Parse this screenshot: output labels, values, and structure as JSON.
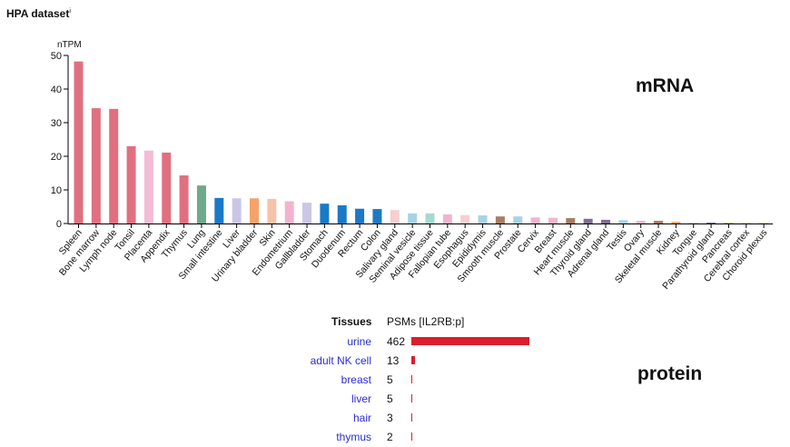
{
  "dataset_title": "HPA dataset",
  "dataset_info_mark": "i",
  "mrna_label": "mRNA",
  "protein_label": "protein",
  "chart_data": [
    {
      "type": "bar",
      "ylabel": "nTPM",
      "ylim": [
        0,
        50
      ],
      "yticks": [
        0,
        10,
        20,
        30,
        40,
        50
      ],
      "categories": [
        "Spleen",
        "Bone marrow",
        "Lymph node",
        "Tonsil",
        "Placenta",
        "Appendix",
        "Thymus",
        "Lung",
        "Small intestine",
        "Liver",
        "Urinary bladder",
        "Skin",
        "Endometrium",
        "Gallbladder",
        "Stomach",
        "Duodenum",
        "Rectum",
        "Colon",
        "Salivary gland",
        "Seminal vesicle",
        "Adipose tissue",
        "Fallopian tube",
        "Esophagus",
        "Epididymis",
        "Smooth muscle",
        "Prostate",
        "Cervix",
        "Breast",
        "Heart muscle",
        "Thyroid gland",
        "Adrenal gland",
        "Testis",
        "Ovary",
        "Skeletal muscle",
        "Kidney",
        "Tongue",
        "Parathyroid gland",
        "Pancreas",
        "Cerebral cortex",
        "Choroid plexus"
      ],
      "values": [
        48.2,
        34.3,
        34.1,
        23.0,
        21.7,
        21.1,
        14.3,
        11.3,
        7.6,
        7.5,
        7.5,
        7.3,
        6.6,
        6.2,
        5.9,
        5.4,
        4.4,
        4.3,
        4.0,
        3.0,
        3.0,
        2.7,
        2.5,
        2.4,
        2.1,
        2.1,
        1.8,
        1.7,
        1.6,
        1.4,
        1.1,
        1.0,
        0.8,
        0.8,
        0.5,
        0.2,
        0.2,
        0.2,
        0.2,
        0.1
      ],
      "colors": [
        "#e07080",
        "#e07080",
        "#e07080",
        "#e07080",
        "#f4bcd6",
        "#e07080",
        "#e07080",
        "#6fa88a",
        "#1a7ac6",
        "#cbc6e6",
        "#f5a26c",
        "#f6c3aa",
        "#f2b4cc",
        "#cbc6e6",
        "#1a7ac6",
        "#1a7ac6",
        "#1a7ac6",
        "#1a7ac6",
        "#f6cfce",
        "#a8d2e6",
        "#a6d9cf",
        "#f2b4cc",
        "#f6cfce",
        "#a8d2e6",
        "#a67d63",
        "#a8d2e6",
        "#f2b4cc",
        "#f2b4cc",
        "#a67d63",
        "#7e6e92",
        "#7e6e92",
        "#a8d2e6",
        "#f2b4cc",
        "#a67d63",
        "#e3a36a",
        "#f6cfce",
        "#7e6e92",
        "#e3c36a",
        "#f6e3a0",
        "#f6e3a0"
      ]
    },
    {
      "type": "bar",
      "orientation": "horizontal",
      "column_headers": [
        "Tissues",
        "PSMs [IL2RB:p]"
      ],
      "categories": [
        "urine",
        "adult NK cell",
        "breast",
        "liver",
        "hair",
        "thymus"
      ],
      "values": [
        462,
        13,
        5,
        5,
        3,
        2
      ],
      "value_labels": [
        "462",
        "13",
        "5",
        "5",
        "3",
        "2"
      ],
      "bar_color": "#dc1e2e"
    }
  ]
}
